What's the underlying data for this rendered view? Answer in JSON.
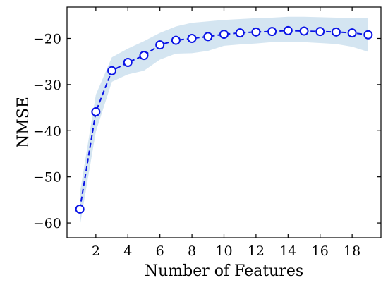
{
  "chart_data": {
    "type": "line",
    "title": "",
    "xlabel": "Number of Features",
    "ylabel": "NMSE",
    "xlim": [
      0.2,
      19.8
    ],
    "ylim": [
      -63.2,
      -13.2
    ],
    "xticks": [
      2,
      4,
      6,
      8,
      10,
      12,
      14,
      16,
      18
    ],
    "yticks": [
      -60,
      -50,
      -40,
      -30,
      -20
    ],
    "ytick_labels": [
      "−60",
      "−50",
      "−40",
      "−30",
      "−20"
    ],
    "grid": false,
    "tick_direction": "in",
    "series": [
      {
        "x": [
          1,
          2,
          3,
          4,
          5,
          6,
          7,
          8,
          9,
          10,
          11,
          12,
          13,
          14,
          15,
          16,
          17,
          18,
          19
        ],
        "values": [
          -57.0,
          -35.9,
          -27.0,
          -25.2,
          -23.7,
          -21.4,
          -20.4,
          -20.0,
          -19.6,
          -19.1,
          -18.8,
          -18.6,
          -18.5,
          -18.3,
          -18.4,
          -18.5,
          -18.6,
          -18.8,
          -19.2
        ],
        "upper": [
          -53.6,
          -32.2,
          -24.1,
          -22.2,
          -20.6,
          -18.8,
          -17.4,
          -16.6,
          -16.3,
          -16.0,
          -15.8,
          -15.6,
          -15.5,
          -15.3,
          -15.3,
          -15.4,
          -15.5,
          -15.6,
          -15.6
        ],
        "lower": [
          -60.7,
          -40.2,
          -29.4,
          -27.8,
          -27.0,
          -24.6,
          -23.3,
          -23.2,
          -22.7,
          -21.6,
          -21.3,
          -21.1,
          -20.8,
          -20.7,
          -20.8,
          -21.0,
          -21.2,
          -21.8,
          -22.9
        ]
      }
    ],
    "colors": {
      "line": "#0a14e6",
      "marker_fill": "#ffffff",
      "band": "#a9cce3",
      "axis": "#000000"
    }
  }
}
